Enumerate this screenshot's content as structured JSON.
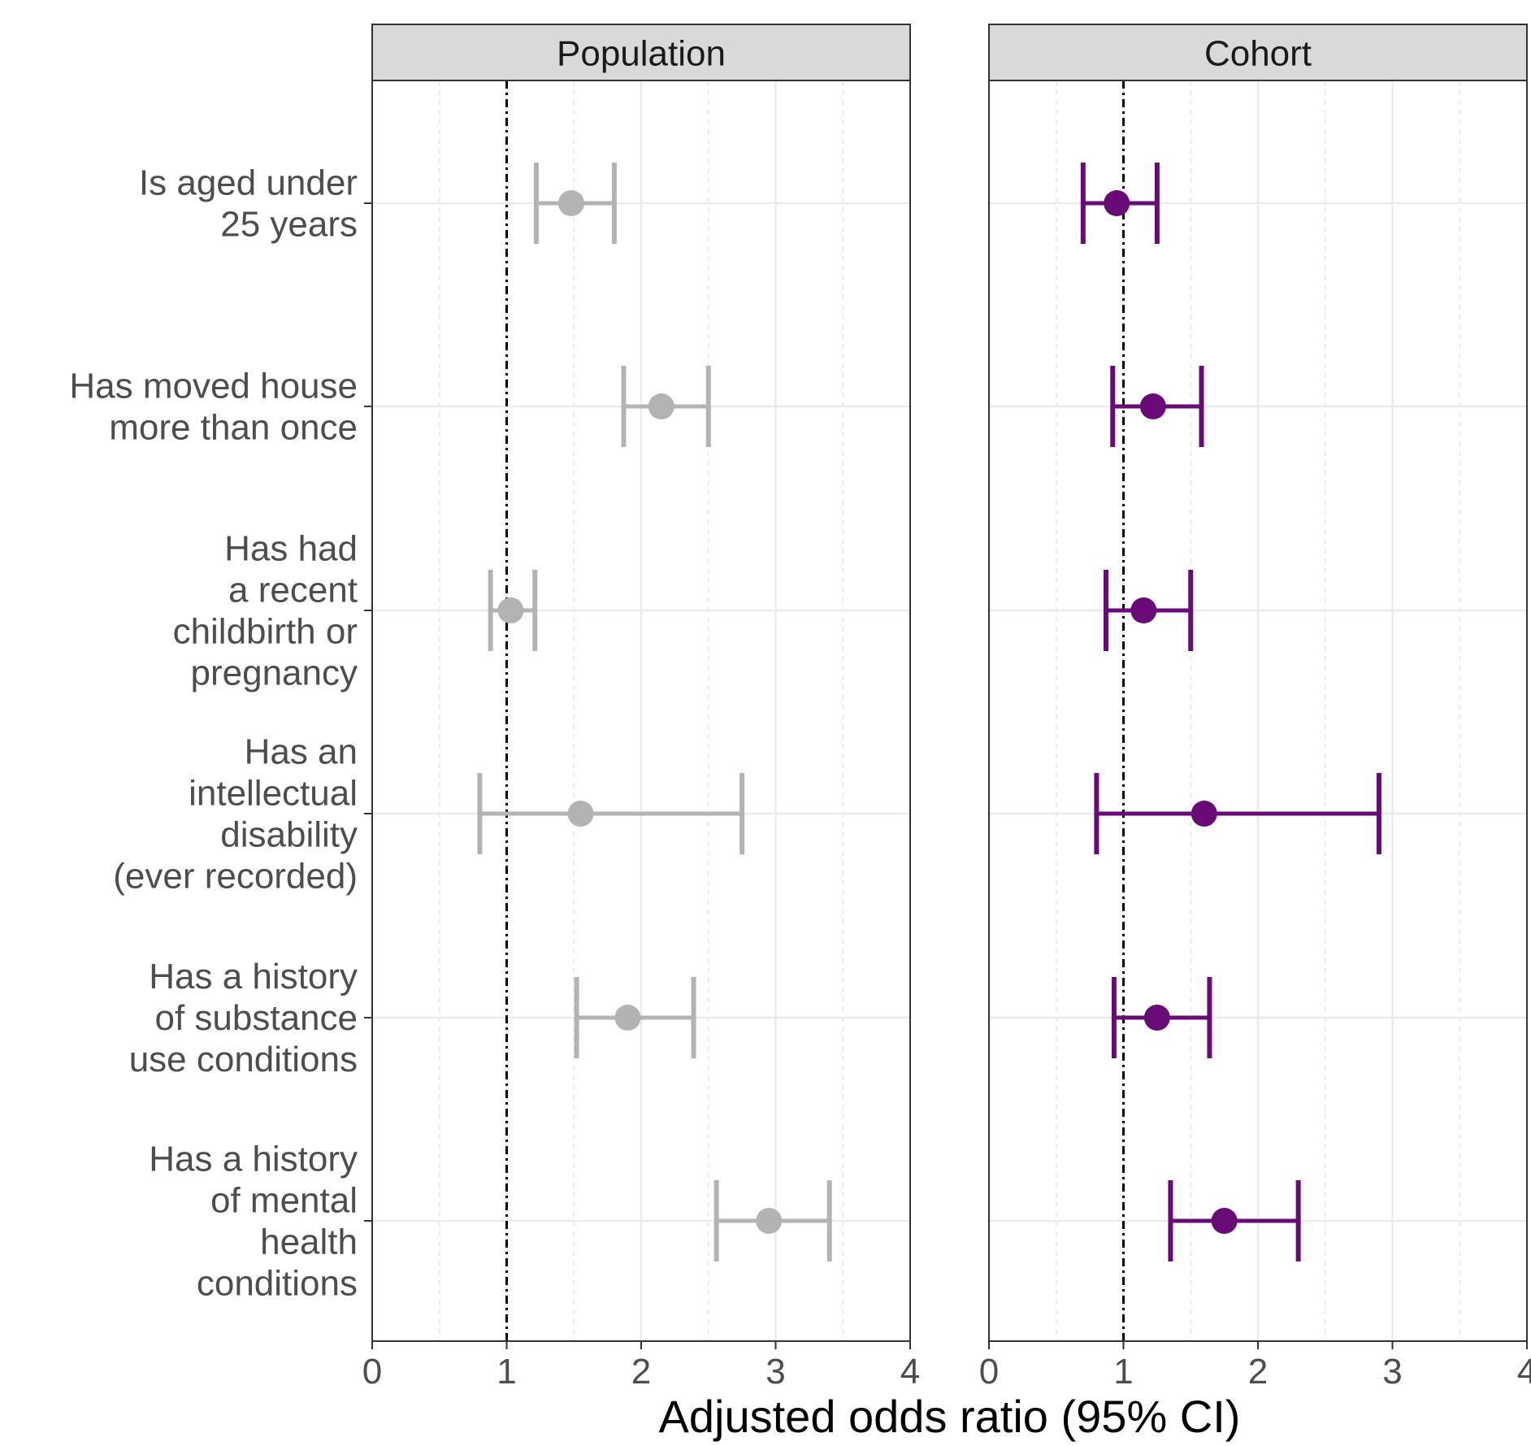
{
  "chart_data": {
    "type": "forest",
    "xlabel": "Adjusted odds ratio (95% CI)",
    "xlim": [
      0,
      4
    ],
    "x_ticks": [
      "0",
      "1",
      "2",
      "3",
      "4"
    ],
    "reference_line": 1,
    "grid": true,
    "categories": [
      [
        "Is aged under",
        "25 years"
      ],
      [
        "Has moved house",
        "more than once"
      ],
      [
        "Has had",
        "a recent",
        "childbirth or",
        "pregnancy"
      ],
      [
        "Has an",
        "intellectual",
        "disability",
        "(ever recorded)"
      ],
      [
        "Has a history",
        "of substance",
        "use conditions"
      ],
      [
        "Has a history",
        "of mental",
        "health",
        "conditions"
      ]
    ],
    "panels": [
      {
        "name": "Population",
        "color": "#b3b3b3",
        "estimates": [
          1.48,
          2.15,
          1.03,
          1.55,
          1.9,
          2.95
        ],
        "lower": [
          1.22,
          1.87,
          0.88,
          0.8,
          1.52,
          2.56
        ],
        "upper": [
          1.8,
          2.5,
          1.21,
          2.75,
          2.39,
          3.4
        ]
      },
      {
        "name": "Cohort",
        "color": "#6a0a78",
        "estimates": [
          0.95,
          1.22,
          1.15,
          1.6,
          1.25,
          1.75
        ],
        "lower": [
          0.7,
          0.92,
          0.87,
          0.8,
          0.93,
          1.35
        ],
        "upper": [
          1.25,
          1.58,
          1.5,
          2.9,
          1.64,
          2.3
        ]
      }
    ]
  }
}
